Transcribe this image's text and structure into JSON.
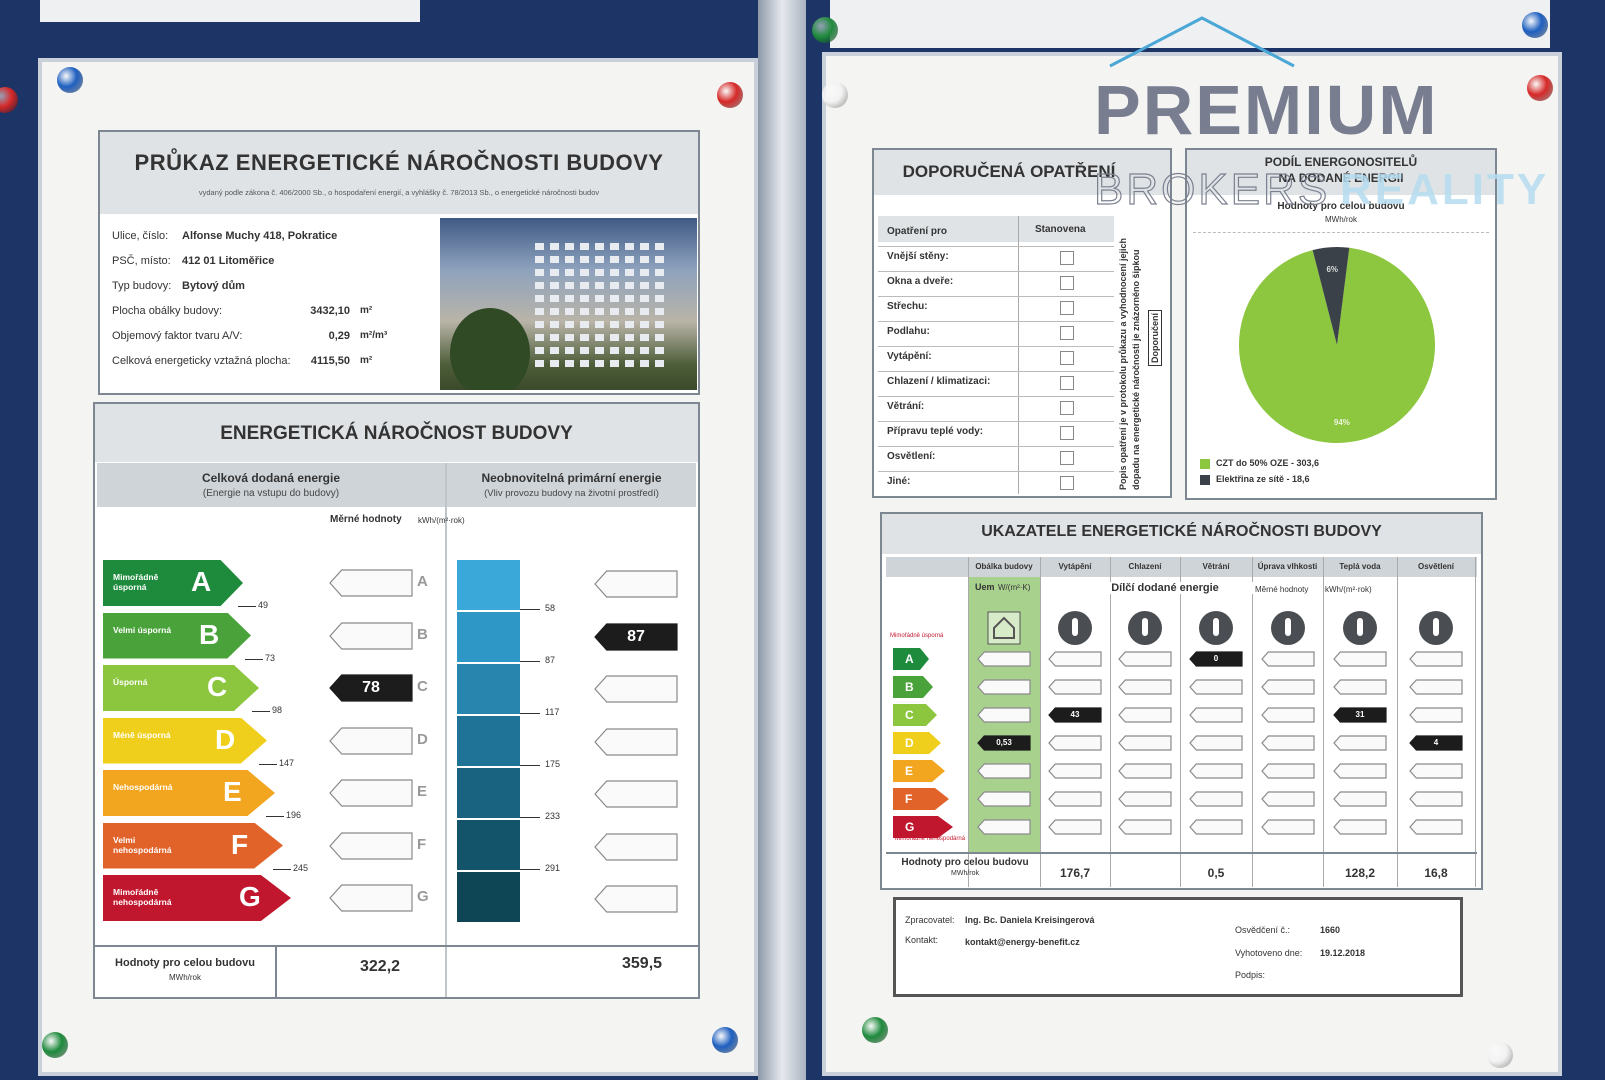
{
  "watermark": {
    "line1": "PREMIUM",
    "line2a": "BROKERS",
    "line2b": "REALITY"
  },
  "left": {
    "title": "PRŮKAZ ENERGETICKÉ NÁROČNOSTI BUDOVY",
    "subtitle": "vydaný podle zákona č. 406/2000 Sb., o hospodaření energií, a vyhlášky č. 78/2013 Sb., o energetické náročnosti budov",
    "info": [
      {
        "label": "Ulice, číslo:",
        "value": "Alfonse Muchy 418, Pokratice"
      },
      {
        "label": "PSČ, místo:",
        "value": "412 01 Litoměřice"
      },
      {
        "label": "Typ budovy:",
        "value": "Bytový dům"
      },
      {
        "label": "Plocha obálky budovy:",
        "value": "3432,10",
        "unit": "m²"
      },
      {
        "label": "Objemový faktor tvaru A/V:",
        "value": "0,29",
        "unit": "m²/m³"
      },
      {
        "label": "Celková energeticky vztažná plocha:",
        "value": "4115,50",
        "unit": "m²"
      }
    ],
    "rating_title": "ENERGETICKÁ NÁROČNOST BUDOVY",
    "col1": {
      "title": "Celková dodaná energie",
      "subtitle": "(Energie na vstupu do budovy)"
    },
    "col2": {
      "title": "Neobnovitelná primární energie",
      "subtitle": "(Vliv provozu budovy na životní prostředí)"
    },
    "unit_label": "Měrné hodnoty",
    "unit": "kWh/(m²·rok)",
    "classes": [
      {
        "letter": "A",
        "label": "Mimořádně úsporná"
      },
      {
        "letter": "B",
        "label": "Velmi úsporná"
      },
      {
        "letter": "C",
        "label": "Úsporná"
      },
      {
        "letter": "D",
        "label": "Méně úsporná"
      },
      {
        "letter": "E",
        "label": "Nehospodárná"
      },
      {
        "letter": "F",
        "label": "Velmi nehospodárná"
      },
      {
        "letter": "G",
        "label": "Mimořádně nehospodárná"
      }
    ],
    "thresholds1": [
      49,
      73,
      98,
      147,
      196,
      245
    ],
    "thresholds2": [
      58,
      87,
      117,
      175,
      233,
      291
    ],
    "marker1": "78",
    "marker2": "87",
    "footer": {
      "label": "Hodnoty pro celou budovu",
      "unit": "MWh/rok",
      "value1": "322,2",
      "value2": "359,5"
    }
  },
  "right": {
    "recommend": {
      "title": "DOPORUČENÁ OPATŘENÍ",
      "col1": "Opatření pro",
      "col2": "Stanovena",
      "items": [
        "Vnější stěny:",
        "Okna a dveře:",
        "Střechu:",
        "Podlahu:",
        "Vytápění:",
        "Chlazení / klimatizaci:",
        "Větrání:",
        "Přípravu teplé vody:",
        "Osvětlení:",
        "Jiné:"
      ],
      "note": "Popis opatření je v protokolu průkazu a vyhodnocení jejich dopadu na energetické náročnosti je znázorněno šipkou",
      "recommended": "Doporučení"
    },
    "pie": {
      "title1": "PODÍL ENERGONOSITELŮ",
      "title2": "NA DODANÉ ENERGII",
      "subtitle": "Hodnoty pro celou budovu",
      "unit": "MWh/rok",
      "values": [
        94,
        6
      ],
      "value_labels": [
        "94%",
        "6%"
      ],
      "colors": [
        "#8dc63f",
        "#3a4148"
      ],
      "legend": [
        "CZT do 50% OZE - 303,6",
        "Elektřina ze sítě - 18,6"
      ]
    },
    "indicators": {
      "title": "UKAZATELE ENERGETICKÉ NÁROČNOSTI BUDOVY",
      "columns": [
        "Obálka budovy",
        "Vytápění",
        "Chlazení",
        "Větrání",
        "Úprava vlhkosti",
        "Teplá voda",
        "Osvětlení"
      ],
      "uem": "Uem",
      "uem_unit": "W/(m²·K)",
      "partial": "Dílčí dodané energie",
      "markers": [
        "0,53",
        "43",
        null,
        "0",
        null,
        "31",
        "4"
      ],
      "totals": [
        "176,7",
        null,
        "0,5",
        null,
        "128,2",
        "16,8"
      ]
    },
    "footer": {
      "processor_label": "Zpracovatel:",
      "processor": "Ing. Bc. Daniela Kreisingerová",
      "contact_label": "Kontakt:",
      "contact": "kontakt@energy-benefit.cz",
      "cert_label": "Osvědčení č.:",
      "cert": "1660",
      "date_label": "Vyhotoveno dne:",
      "date": "19.12.2018",
      "sign_label": "Podpis:"
    }
  }
}
